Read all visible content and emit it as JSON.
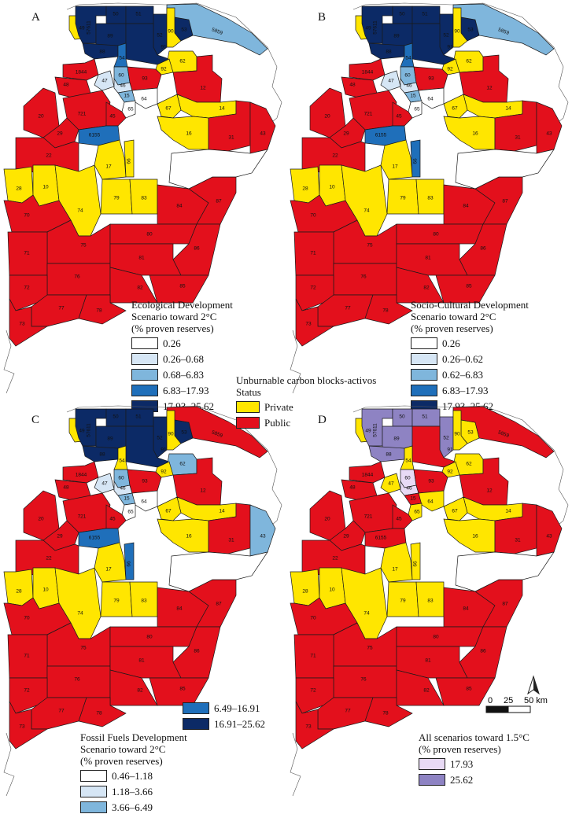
{
  "colors": {
    "private": "#ffe600",
    "public": "#e3101c",
    "none": "#ffffff",
    "c1": "#d6e6f5",
    "c2": "#7fb6dc",
    "c3": "#1f6fba",
    "c4": "#0c2a66",
    "d1": "#e8daf5",
    "d2": "#8e83c3"
  },
  "block_labels": {
    "b49": "49",
    "b50": "50",
    "b51": "51",
    "b53": "53",
    "b5859": "5859",
    "b57611": "57611",
    "b52": "52",
    "b89": "89",
    "b90": "90",
    "b88": "88",
    "b91": "91",
    "b54": "54",
    "b62": "62",
    "b92": "92",
    "b1844": "1844",
    "b47": "47",
    "b60": "60",
    "b46": "46",
    "b93": "93",
    "b48": "48",
    "b15": "15",
    "b12": "12",
    "b64": "64",
    "b65": "65",
    "b14": "14",
    "b67": "67",
    "b721": "721",
    "b45": "45",
    "b20": "20",
    "b29": "29",
    "b6155": "6155",
    "b16": "16",
    "b31": "31",
    "b43": "43",
    "b22": "22",
    "b17": "17",
    "b66": "66",
    "b28": "28",
    "b10": "10",
    "b79": "79",
    "b83": "83",
    "b84": "84",
    "b87": "87",
    "b70": "70",
    "b74": "74",
    "b75": "75",
    "b80": "80",
    "b86": "86",
    "b71": "71",
    "b76": "76",
    "b81": "81",
    "b85": "85",
    "b72": "72",
    "b82": "82",
    "b77": "77",
    "b78": "78",
    "b73": "73"
  },
  "panels": [
    {
      "letter": "A",
      "legend_title": [
        "Ecological Development",
        "Scenario toward 2°C",
        "(% proven reserves)"
      ],
      "classes": [
        {
          "label": "0.26",
          "color": "#ffffff"
        },
        {
          "label": "0.26–0.68",
          "color": "#d6e6f5"
        },
        {
          "label": "0.68–6.83",
          "color": "#7fb6dc"
        },
        {
          "label": "6.83–17.93",
          "color": "#1f6fba"
        },
        {
          "label": "17.93–25.62",
          "color": "#0c2a66"
        }
      ],
      "blocks": {
        "b49": "private",
        "b50": "c4",
        "b51": "c4",
        "b53": "c4",
        "b5859": "c2",
        "b57611": "c4",
        "b52": "c4",
        "b89": "c4",
        "b90": "private",
        "b88": "c4",
        "b91": "c4",
        "b54": "c3",
        "b62": "private",
        "b92": "private",
        "b1844": "public",
        "b47": "c1",
        "b60": "c2",
        "b46": "c1",
        "b93": "public",
        "b48": "public",
        "b15": "c2",
        "b12": "public",
        "b64": "none",
        "b65": "none",
        "b14": "private",
        "b67": "private",
        "b721": "public",
        "b45": "public",
        "b20": "public",
        "b29": "public",
        "b6155": "c3",
        "b16": "private",
        "b31": "public",
        "b43": "public",
        "b22": "public",
        "b17": "private",
        "b66": "private",
        "b28": "private",
        "b10": "private",
        "b79": "private",
        "b83": "private",
        "b84": "public",
        "b87": "public",
        "b70": "public",
        "b74": "private",
        "b75": "public",
        "b80": "public",
        "b86": "public",
        "b71": "public",
        "b76": "public",
        "b81": "public",
        "b85": "public",
        "b72": "public",
        "b82": "public",
        "b77": "public",
        "b78": "public",
        "b73": "public"
      }
    },
    {
      "letter": "B",
      "legend_title": [
        "Socio-Cultural Development",
        "Scenario toward 2°C",
        "(% proven reserves)"
      ],
      "classes": [
        {
          "label": "0.26",
          "color": "#ffffff"
        },
        {
          "label": "0.26–0.62",
          "color": "#d6e6f5"
        },
        {
          "label": "0.62–6.83",
          "color": "#7fb6dc"
        },
        {
          "label": "6.83–17.93",
          "color": "#1f6fba"
        },
        {
          "label": "17.93–25.62",
          "color": "#0c2a66"
        }
      ],
      "blocks": {
        "b49": "private",
        "b50": "c4",
        "b51": "c4",
        "b53": "c4",
        "b5859": "c2",
        "b57611": "c4",
        "b52": "c4",
        "b89": "c4",
        "b90": "private",
        "b88": "c4",
        "b91": "c4",
        "b54": "c3",
        "b62": "private",
        "b92": "private",
        "b1844": "public",
        "b47": "c1",
        "b60": "c2",
        "b46": "c1",
        "b93": "public",
        "b48": "public",
        "b15": "c2",
        "b12": "public",
        "b64": "none",
        "b65": "none",
        "b14": "private",
        "b67": "private",
        "b721": "public",
        "b45": "public",
        "b20": "public",
        "b29": "public",
        "b6155": "c3",
        "b16": "private",
        "b31": "public",
        "b43": "public",
        "b22": "public",
        "b17": "private",
        "b66": "c3",
        "b28": "private",
        "b10": "private",
        "b79": "private",
        "b83": "private",
        "b84": "public",
        "b87": "public",
        "b70": "public",
        "b74": "private",
        "b75": "public",
        "b80": "public",
        "b86": "public",
        "b71": "public",
        "b76": "public",
        "b81": "public",
        "b85": "public",
        "b72": "public",
        "b82": "public",
        "b77": "public",
        "b78": "public",
        "b73": "public"
      }
    },
    {
      "letter": "C",
      "legend_title": [
        "Fossil Fuels Development",
        "Scenario toward 2°C",
        "(% proven reserves)"
      ],
      "classes": [
        {
          "label": "0.46–1.18",
          "color": "#ffffff"
        },
        {
          "label": "1.18–3.66",
          "color": "#d6e6f5"
        },
        {
          "label": "3.66–6.49",
          "color": "#7fb6dc"
        },
        {
          "label": "6.49–16.91",
          "color": "#1f6fba"
        },
        {
          "label": "16.91–25.62",
          "color": "#0c2a66"
        }
      ],
      "blocks": {
        "b49": "private",
        "b50": "c4",
        "b51": "c4",
        "b53": "c4",
        "b5859": "public",
        "b57611": "c4",
        "b52": "c4",
        "b89": "c4",
        "b90": "private",
        "b88": "c4",
        "b91": "c4",
        "b54": "private",
        "b62": "c2",
        "b92": "private",
        "b1844": "public",
        "b47": "c1",
        "b60": "c2",
        "b46": "c1",
        "b93": "public",
        "b48": "public",
        "b15": "c2",
        "b12": "public",
        "b64": "none",
        "b65": "none",
        "b14": "private",
        "b67": "private",
        "b721": "public",
        "b45": "public",
        "b20": "public",
        "b29": "public",
        "b6155": "c3",
        "b16": "private",
        "b31": "public",
        "b43": "c2",
        "b22": "public",
        "b17": "private",
        "b66": "c3",
        "b28": "private",
        "b10": "private",
        "b79": "private",
        "b83": "private",
        "b84": "public",
        "b87": "public",
        "b70": "public",
        "b74": "private",
        "b75": "public",
        "b80": "public",
        "b86": "public",
        "b71": "public",
        "b76": "public",
        "b81": "public",
        "b85": "public",
        "b72": "public",
        "b82": "public",
        "b77": "public",
        "b78": "public",
        "b73": "public"
      }
    },
    {
      "letter": "D",
      "legend_title": [
        "All scenarios toward 1.5°C",
        "(% proven reserves)"
      ],
      "classes": [
        {
          "label": "17.93",
          "color": "#e8daf5"
        },
        {
          "label": "25.62",
          "color": "#8e83c3"
        }
      ],
      "blocks": {
        "b49": "private",
        "b50": "d2",
        "b51": "d2",
        "b53": "private",
        "b5859": "public",
        "b57611": "d2",
        "b52": "d2",
        "b89": "d2",
        "b90": "private",
        "b88": "d2",
        "b91": "public",
        "b54": "private",
        "b62": "private",
        "b92": "private",
        "b1844": "public",
        "b47": "private",
        "b60": "d1",
        "b46": "d1",
        "b93": "public",
        "b48": "public",
        "b15": "public",
        "b12": "public",
        "b64": "private",
        "b65": "private",
        "b14": "private",
        "b67": "private",
        "b721": "public",
        "b45": "public",
        "b20": "public",
        "b29": "public",
        "b6155": "public",
        "b16": "private",
        "b31": "public",
        "b43": "public",
        "b22": "public",
        "b17": "private",
        "b66": "private",
        "b28": "private",
        "b10": "private",
        "b79": "private",
        "b83": "private",
        "b84": "public",
        "b87": "public",
        "b70": "public",
        "b74": "private",
        "b75": "public",
        "b80": "public",
        "b86": "public",
        "b71": "public",
        "b76": "public",
        "b81": "public",
        "b85": "public",
        "b72": "public",
        "b82": "public",
        "b77": "public",
        "b78": "public",
        "b73": "public"
      }
    }
  ],
  "status_legend": {
    "title": [
      "Unburnable carbon blocks-activos",
      "Status"
    ],
    "items": [
      {
        "label": "Private",
        "color": "#ffe600"
      },
      {
        "label": "Public",
        "color": "#e3101c"
      }
    ]
  },
  "scale_bar": {
    "tick_labels": [
      "0",
      "25",
      "50 km"
    ]
  }
}
